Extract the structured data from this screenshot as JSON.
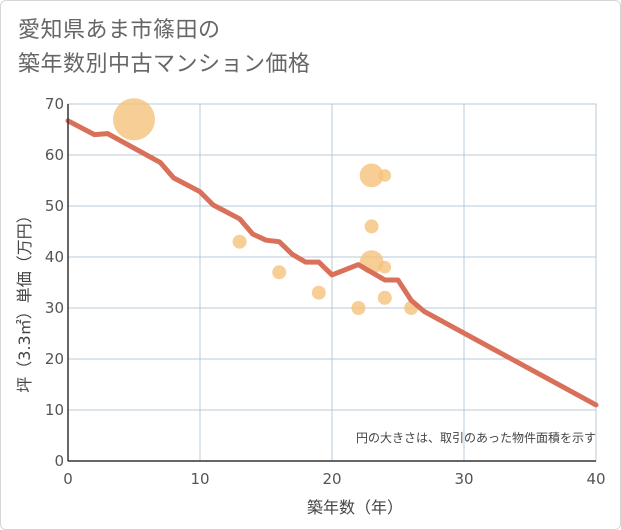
{
  "title": {
    "line1": "愛知県あま市篠田の",
    "line2": "築年数別中古マンション価格"
  },
  "note": "円の大きさは、取引のあった物件面積を示す",
  "colors": {
    "line": "#d9705a",
    "bubble": "#f5c37f",
    "grid": "#b8c8d8",
    "axis": "#333333"
  },
  "chart_data": {
    "type": "scatter",
    "xlabel": "築年数（年）",
    "ylabel": "坪（3.3㎡）単価（万円）",
    "xlim": [
      0,
      40
    ],
    "ylim": [
      0,
      70
    ],
    "x_ticks": [
      0,
      10,
      20,
      30,
      40
    ],
    "y_ticks": [
      0,
      10,
      20,
      30,
      40,
      50,
      60,
      70
    ],
    "grid": true,
    "trend_line": {
      "x": [
        0,
        2,
        3,
        7,
        8,
        10,
        11,
        13,
        14,
        15,
        16,
        17,
        18,
        19,
        20,
        22,
        24,
        25,
        26,
        27,
        40
      ],
      "y": [
        66.7,
        64,
        64.2,
        58.5,
        55.5,
        52.8,
        50.2,
        47.5,
        44.5,
        43.3,
        43,
        40.5,
        39,
        39,
        36.5,
        38.5,
        35.5,
        35.5,
        31.5,
        29.3,
        11
      ]
    },
    "points": [
      {
        "x": 5,
        "y": 67,
        "size": 3.0
      },
      {
        "x": 13,
        "y": 43,
        "size": 1.0
      },
      {
        "x": 16,
        "y": 37,
        "size": 1.0
      },
      {
        "x": 19,
        "y": 33,
        "size": 1.0
      },
      {
        "x": 22,
        "y": 30,
        "size": 1.0
      },
      {
        "x": 23,
        "y": 56,
        "size": 1.7
      },
      {
        "x": 24,
        "y": 56,
        "size": 0.9
      },
      {
        "x": 23,
        "y": 46,
        "size": 1.0
      },
      {
        "x": 23,
        "y": 39,
        "size": 1.7
      },
      {
        "x": 24,
        "y": 38,
        "size": 0.9
      },
      {
        "x": 24,
        "y": 32,
        "size": 1.0
      },
      {
        "x": 26,
        "y": 30,
        "size": 1.0
      }
    ]
  }
}
